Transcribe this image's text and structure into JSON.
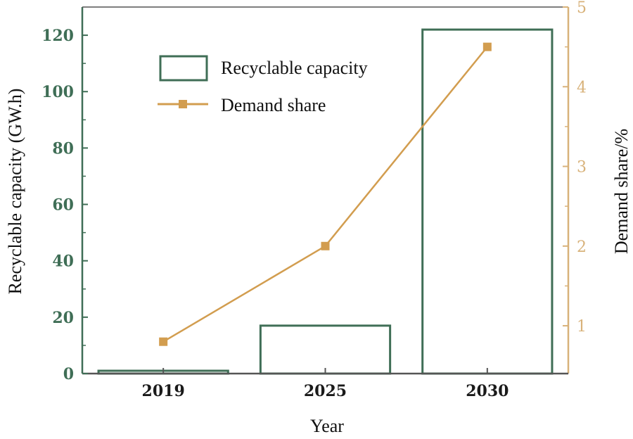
{
  "chart_data": {
    "type": "bar+line",
    "categories": [
      "2019",
      "2025",
      "2030"
    ],
    "series": [
      {
        "name": "Recyclable capacity",
        "kind": "bar",
        "axis": "left",
        "values": [
          1,
          17,
          122
        ]
      },
      {
        "name": "Demand share",
        "kind": "line",
        "axis": "right",
        "values": [
          0.8,
          2.0,
          4.5
        ]
      }
    ],
    "xlabel": "Year",
    "ylabel_left": "Recyclable capacity (GW.h)",
    "ylabel_right": "Demand share/%",
    "ylim_left": [
      0,
      130
    ],
    "yticks_left": [
      "0",
      "20",
      "40",
      "60",
      "80",
      "100",
      "120"
    ],
    "ylim_right": [
      0.4,
      5
    ],
    "yticks_right": [
      "1",
      "2",
      "3",
      "4",
      "5"
    ],
    "legend": {
      "placement": "top-left",
      "entries": [
        "Recyclable capacity",
        "Demand share"
      ]
    },
    "colors": {
      "bar_edge": "#3f6e56",
      "left_axis": "#3f6e56",
      "line": "#d29d4f",
      "right_axis": "#d8b27a",
      "frame": "#555555"
    }
  }
}
